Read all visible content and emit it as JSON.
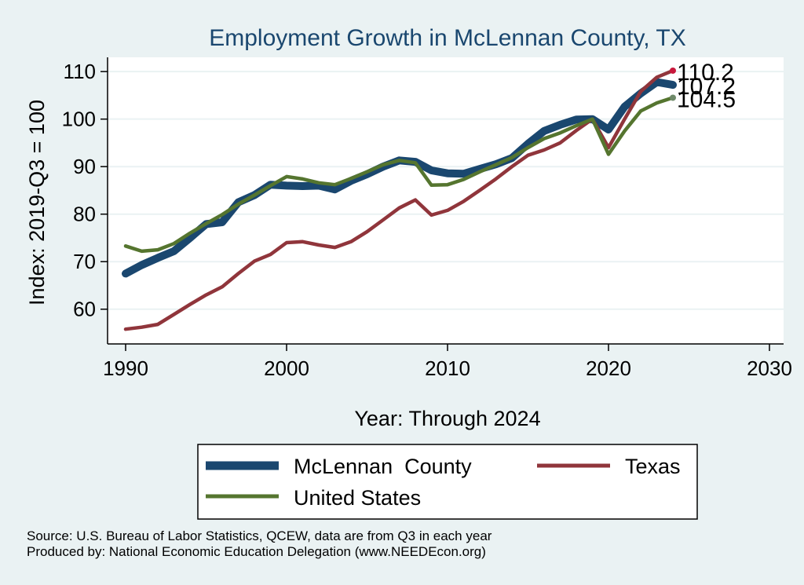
{
  "chart_data": {
    "type": "line",
    "title": "Employment Growth in McLennan County, TX",
    "xlabel": "Year: Through 2024",
    "ylabel": "Index: 2019-Q3 = 100",
    "xlim": [
      1990,
      2030
    ],
    "ylim": [
      55,
      113
    ],
    "xticks": [
      "1990",
      "2000",
      "2010",
      "2020",
      "2030"
    ],
    "yticks": [
      "60",
      "70",
      "80",
      "90",
      "100",
      "110"
    ],
    "grid": true,
    "legend_position": "bottom",
    "end_labels": [
      "110.2",
      "107.2",
      "104.5"
    ],
    "x": [
      1990,
      1991,
      1992,
      1993,
      1994,
      1995,
      1996,
      1997,
      1998,
      1999,
      2000,
      2001,
      2002,
      2003,
      2004,
      2005,
      2006,
      2007,
      2008,
      2009,
      2010,
      2011,
      2012,
      2013,
      2014,
      2015,
      2016,
      2017,
      2018,
      2019,
      2020,
      2021,
      2022,
      2023,
      2024
    ],
    "series": [
      {
        "name": "McLennan  County",
        "color": "#1a476f",
        "values": [
          67.5,
          69.3,
          70.8,
          72.2,
          75.0,
          77.9,
          78.3,
          82.5,
          84.0,
          86.2,
          86.0,
          85.9,
          86.0,
          85.2,
          87.0,
          88.4,
          90.0,
          91.3,
          91.0,
          89.2,
          88.6,
          88.5,
          89.5,
          90.5,
          91.8,
          94.8,
          97.5,
          98.8,
          99.9,
          100.0,
          97.8,
          102.6,
          105.4,
          107.8,
          107.2
        ]
      },
      {
        "name": "Texas",
        "color": "#90353b",
        "values": [
          55.8,
          56.2,
          56.8,
          58.9,
          61.0,
          63.0,
          64.7,
          67.5,
          70.1,
          71.5,
          74.0,
          74.2,
          73.5,
          73.0,
          74.2,
          76.3,
          78.8,
          81.3,
          83.0,
          79.8,
          80.8,
          82.7,
          85.0,
          87.4,
          90.0,
          92.4,
          93.5,
          95.0,
          97.6,
          100.0,
          94.0,
          100.0,
          105.8,
          108.8,
          110.2
        ]
      },
      {
        "name": "United States",
        "color": "#55752f",
        "values": [
          73.3,
          72.2,
          72.5,
          73.8,
          76.0,
          78.0,
          79.9,
          82.1,
          84.0,
          86.0,
          87.9,
          87.4,
          86.6,
          86.2,
          87.5,
          88.9,
          90.4,
          91.3,
          90.8,
          86.1,
          86.2,
          87.3,
          88.9,
          90.4,
          91.9,
          94.0,
          95.9,
          97.1,
          98.6,
          100.0,
          92.6,
          97.5,
          101.7,
          103.4,
          104.5
        ]
      }
    ],
    "colors": {
      "background": "#eaf2f3",
      "plot_background": "#ffffff",
      "grid": "#eaf2f3",
      "title": "#1a476f",
      "texas_end_marker": "#c8183c",
      "us_end_marker": "#6f8a6a"
    }
  },
  "footnotes": {
    "source": "Source: U.S. Bureau of Labor Statistics, QCEW, data are from Q3 in each year",
    "producer": "Produced by: National Economic Education Delegation (www.NEEDEcon.org)"
  }
}
